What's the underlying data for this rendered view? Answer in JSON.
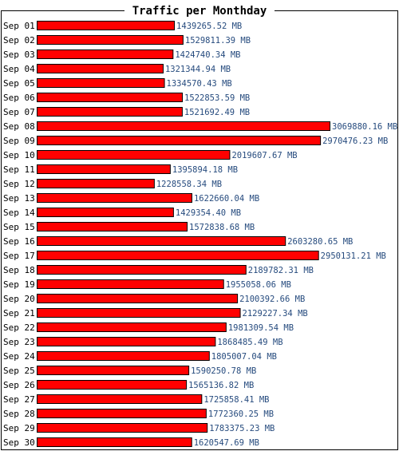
{
  "chart_data": {
    "type": "bar",
    "orientation": "horizontal",
    "title": "Traffic per Monthday",
    "unit": "MB",
    "categories": [
      "Sep 01",
      "Sep 02",
      "Sep 03",
      "Sep 04",
      "Sep 05",
      "Sep 06",
      "Sep 07",
      "Sep 08",
      "Sep 09",
      "Sep 10",
      "Sep 11",
      "Sep 12",
      "Sep 13",
      "Sep 14",
      "Sep 15",
      "Sep 16",
      "Sep 17",
      "Sep 18",
      "Sep 19",
      "Sep 20",
      "Sep 21",
      "Sep 22",
      "Sep 23",
      "Sep 24",
      "Sep 25",
      "Sep 26",
      "Sep 27",
      "Sep 28",
      "Sep 29",
      "Sep 30"
    ],
    "values": [
      1439265.52,
      1529811.39,
      1424740.34,
      1321344.94,
      1334570.43,
      1522853.59,
      1521692.49,
      3069880.16,
      2970476.23,
      2019607.67,
      1395894.18,
      1228558.34,
      1622660.04,
      1429354.4,
      1572838.68,
      2603280.65,
      2950131.21,
      2189782.31,
      1955058.06,
      2100392.66,
      2129227.34,
      1981309.54,
      1868485.49,
      1805007.04,
      1590250.78,
      1565136.82,
      1725858.41,
      1772360.25,
      1783375.23,
      1620547.69
    ],
    "value_labels": [
      "1439265.52 MB",
      "1529811.39 MB",
      "1424740.34 MB",
      "1321344.94 MB",
      "1334570.43 MB",
      "1522853.59 MB",
      "1521692.49 MB",
      "3069880.16 MB",
      "2970476.23 MB",
      "2019607.67 MB",
      "1395894.18 MB",
      "1228558.34 MB",
      "1622660.04 MB",
      "1429354.40 MB",
      "1572838.68 MB",
      "2603280.65 MB",
      "2950131.21 MB",
      "2189782.31 MB",
      "1955058.06 MB",
      "2100392.66 MB",
      "2129227.34 MB",
      "1981309.54 MB",
      "1868485.49 MB",
      "1805007.04 MB",
      "1590250.78 MB",
      "1565136.82 MB",
      "1725858.41 MB",
      "1772360.25 MB",
      "1783375.23 MB",
      "1620547.69 MB"
    ],
    "xlim": [
      0,
      3069880.16
    ],
    "grid": false,
    "legend": "none",
    "colors": {
      "bar_fill": "#ff0000",
      "bar_stroke": "#000000",
      "value_text": "#264b7e",
      "frame": "#000000"
    }
  }
}
